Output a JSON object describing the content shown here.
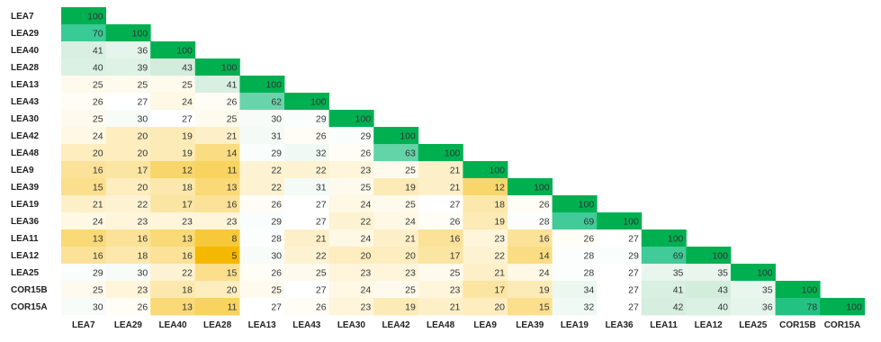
{
  "chart_data": {
    "type": "heatmap",
    "title": "",
    "row_labels": [
      "LEA7",
      "LEA29",
      "LEA40",
      "LEA28",
      "LEA13",
      "LEA43",
      "LEA30",
      "LEA42",
      "LEA48",
      "LEA9",
      "LEA39",
      "LEA19",
      "LEA36",
      "LEA11",
      "LEA12",
      "LEA25",
      "COR15B",
      "COR15A"
    ],
    "col_labels": [
      "LEA7",
      "LEA29",
      "LEA40",
      "LEA28",
      "LEA13",
      "LEA43",
      "LEA30",
      "LEA42",
      "LEA48",
      "LEA9",
      "LEA39",
      "LEA19",
      "LEA36",
      "LEA11",
      "LEA12",
      "LEA25",
      "COR15B",
      "COR15A"
    ],
    "values": [
      [
        100
      ],
      [
        70,
        100
      ],
      [
        41,
        36,
        100
      ],
      [
        40,
        39,
        43,
        100
      ],
      [
        25,
        25,
        25,
        41,
        100
      ],
      [
        26,
        27,
        24,
        26,
        62,
        100
      ],
      [
        25,
        30,
        27,
        25,
        30,
        29,
        100
      ],
      [
        24,
        20,
        19,
        21,
        31,
        26,
        29,
        100
      ],
      [
        20,
        20,
        19,
        14,
        29,
        32,
        26,
        63,
        100
      ],
      [
        16,
        17,
        12,
        11,
        22,
        22,
        23,
        25,
        21,
        100
      ],
      [
        15,
        20,
        18,
        13,
        22,
        31,
        25,
        19,
        21,
        12,
        100
      ],
      [
        21,
        22,
        17,
        16,
        26,
        27,
        24,
        25,
        27,
        18,
        26,
        100
      ],
      [
        24,
        23,
        23,
        23,
        29,
        27,
        22,
        24,
        26,
        19,
        28,
        69,
        100
      ],
      [
        13,
        16,
        13,
        8,
        28,
        21,
        24,
        21,
        16,
        23,
        16,
        26,
        27,
        100
      ],
      [
        16,
        18,
        16,
        5,
        30,
        22,
        20,
        20,
        17,
        22,
        14,
        28,
        29,
        69,
        100
      ],
      [
        29,
        30,
        22,
        15,
        26,
        25,
        23,
        23,
        25,
        21,
        24,
        28,
        27,
        35,
        35,
        100
      ],
      [
        25,
        23,
        18,
        20,
        25,
        27,
        24,
        25,
        23,
        17,
        19,
        34,
        27,
        41,
        43,
        35,
        100
      ],
      [
        30,
        26,
        13,
        11,
        27,
        26,
        23,
        19,
        21,
        20,
        15,
        32,
        27,
        42,
        40,
        36,
        78,
        100
      ]
    ],
    "layout": "lower-triangular",
    "grid": false,
    "legend": "none",
    "colors": {
      "low": "#f5b800",
      "mid": "#ffffff",
      "high_light": "#cdebd9",
      "high_mid": "#2ec790",
      "max": "#00b050"
    }
  }
}
